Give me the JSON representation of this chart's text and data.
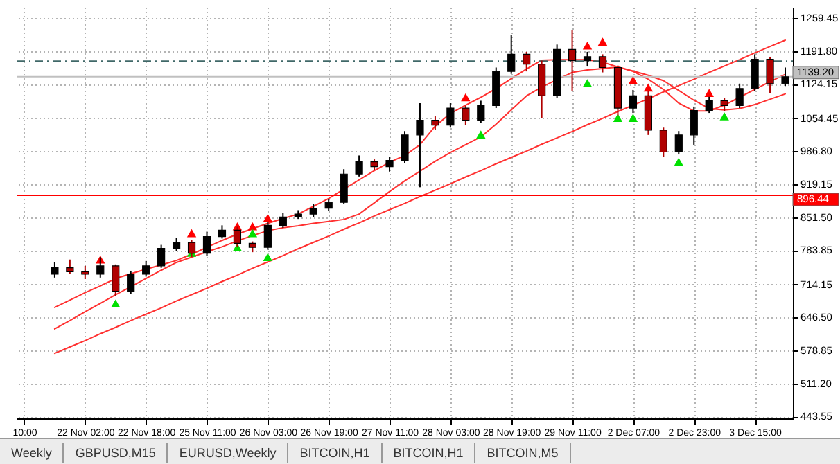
{
  "chart_data": {
    "type": "candlestick",
    "categories": [
      "10:00",
      null,
      null,
      null,
      "22 Nov 02:00",
      null,
      null,
      null,
      "22 Nov 18:00",
      null,
      null,
      null,
      "25 Nov 11:00",
      null,
      null,
      null,
      "26 Nov 03:00",
      null,
      null,
      null,
      "26 Nov 19:00",
      null,
      null,
      null,
      "27 Nov 11:00",
      null,
      null,
      null,
      "28 Nov 03:00",
      null,
      null,
      null,
      "28 Nov 19:00",
      null,
      null,
      null,
      "29 Nov 11:00",
      null,
      null,
      null,
      "2 Dec 07:00",
      null,
      null,
      null,
      "2 Dec 23:00",
      null,
      null,
      null,
      "3 Dec 15:00",
      null,
      null
    ],
    "ohlc": [
      null,
      null,
      [
        735,
        760,
        728,
        748
      ],
      [
        748,
        765,
        735,
        740
      ],
      [
        740,
        752,
        725,
        735
      ],
      [
        735,
        770,
        728,
        752
      ],
      [
        752,
        755,
        690,
        700
      ],
      [
        700,
        742,
        695,
        735
      ],
      [
        735,
        762,
        730,
        752
      ],
      [
        752,
        795,
        748,
        788
      ],
      [
        788,
        810,
        782,
        800
      ],
      [
        800,
        805,
        770,
        778
      ],
      [
        778,
        822,
        772,
        812
      ],
      [
        812,
        835,
        808,
        825
      ],
      [
        825,
        832,
        790,
        798
      ],
      [
        798,
        802,
        780,
        790
      ],
      [
        790,
        842,
        785,
        835
      ],
      [
        835,
        860,
        830,
        852
      ],
      [
        852,
        866,
        848,
        858
      ],
      [
        858,
        878,
        852,
        870
      ],
      [
        870,
        888,
        865,
        882
      ],
      [
        882,
        950,
        878,
        940
      ],
      [
        940,
        978,
        935,
        965
      ],
      [
        965,
        970,
        948,
        955
      ],
      [
        955,
        975,
        945,
        968
      ],
      [
        968,
        1028,
        962,
        1020
      ],
      [
        1020,
        1085,
        913,
        1050
      ],
      [
        1050,
        1058,
        1030,
        1040
      ],
      [
        1040,
        1085,
        1035,
        1075
      ],
      [
        1075,
        1080,
        1040,
        1050
      ],
      [
        1050,
        1090,
        1045,
        1080
      ],
      [
        1080,
        1158,
        1075,
        1150
      ],
      [
        1150,
        1225,
        1145,
        1185
      ],
      [
        1185,
        1190,
        1150,
        1165
      ],
      [
        1165,
        1172,
        1054,
        1100
      ],
      [
        1100,
        1205,
        1095,
        1195
      ],
      [
        1195,
        1235,
        1110,
        1172
      ],
      [
        1172,
        1190,
        1160,
        1180
      ],
      [
        1180,
        1185,
        1148,
        1158
      ],
      [
        1158,
        1162,
        1060,
        1075
      ],
      [
        1075,
        1112,
        1065,
        1100
      ],
      [
        1100,
        1110,
        1020,
        1030
      ],
      [
        1030,
        1035,
        975,
        985
      ],
      [
        985,
        1028,
        980,
        1020
      ],
      [
        1020,
        1078,
        1000,
        1070
      ],
      [
        1070,
        1098,
        1065,
        1090
      ],
      [
        1090,
        1095,
        1068,
        1080
      ],
      [
        1080,
        1125,
        1075,
        1115
      ],
      [
        1115,
        1185,
        1110,
        1175
      ],
      [
        1175,
        1180,
        1105,
        1125
      ],
      [
        1125,
        1158,
        1120,
        1139
      ]
    ],
    "colors": [
      null,
      null,
      "#000000",
      "#b00000",
      "#b00000",
      "#000000",
      "#b00000",
      "#000000",
      "#000000",
      "#000000",
      "#000000",
      "#b00000",
      "#000000",
      "#000000",
      "#b00000",
      "#b00000",
      "#000000",
      "#000000",
      "#000000",
      "#000000",
      "#000000",
      "#000000",
      "#000000",
      "#b00000",
      "#000000",
      "#000000",
      "#000000",
      "#b00000",
      "#000000",
      "#b00000",
      "#000000",
      "#000000",
      "#000000",
      "#b00000",
      "#b00000",
      "#000000",
      "#b00000",
      "#000000",
      "#b00000",
      "#b00000",
      "#000000",
      "#b00000",
      "#b00000",
      "#000000",
      "#000000",
      "#000000",
      "#b00000",
      "#000000",
      "#000000",
      "#b00000",
      "#000000"
    ],
    "ylim": [
      440,
      1282
    ],
    "yticks": [
      {
        "value": 443.55,
        "label": "443.55"
      },
      {
        "value": 511.2,
        "label": "511.20"
      },
      {
        "value": 578.85,
        "label": "578.85"
      },
      {
        "value": 646.5,
        "label": "646.50"
      },
      {
        "value": 714.15,
        "label": "714.15"
      },
      {
        "value": 783.85,
        "label": "783.85"
      },
      {
        "value": 851.5,
        "label": "851.50"
      },
      {
        "value": 919.15,
        "label": "919.15"
      },
      {
        "value": 986.8,
        "label": "986.80"
      },
      {
        "value": 1054.45,
        "label": "1054.45"
      },
      {
        "value": 1124.15,
        "label": "1124.15"
      },
      {
        "value": 1191.8,
        "label": "1191.80"
      },
      {
        "value": 1259.45,
        "label": "1259.45"
      }
    ],
    "grid": true,
    "series": [
      {
        "type": "line",
        "color": "#ff3030",
        "values": [
          null,
          null,
          667,
          682,
          697,
          711,
          726,
          736,
          745,
          754,
          763,
          776,
          790,
          804,
          817,
          828,
          839,
          849,
          858,
          874,
          890,
          909,
          928,
          947,
          964,
          978,
          1000,
          1038,
          1064,
          1081,
          1097,
          1115,
          1135,
          1155,
          1173,
          1174,
          1174,
          1174,
          1169,
          1159,
          1150,
          1134,
          1113,
          1085,
          1069,
          1069,
          1081,
          1097,
          1113,
          1129,
          1144
        ]
      },
      {
        "type": "line",
        "color": "#ff3030",
        "values": [
          null,
          null,
          623,
          640,
          658,
          675,
          693,
          709,
          726,
          743,
          759,
          770,
          781,
          791,
          803,
          814,
          824,
          830,
          834,
          839,
          843,
          847,
          858,
          881,
          904,
          926,
          946,
          966,
          984,
          1000,
          1016,
          1042,
          1071,
          1100,
          1118,
          1133,
          1148,
          1153,
          1156,
          1159,
          1151,
          1142,
          1131,
          1111,
          1091,
          1074,
          1071,
          1074,
          1082,
          1093,
          1104
        ]
      },
      {
        "type": "line",
        "color": "#ff3030",
        "values": [
          null,
          null,
          573,
          586,
          599,
          613,
          626,
          640,
          653,
          666,
          680,
          693,
          706,
          720,
          733,
          747,
          760,
          773,
          787,
          800,
          813,
          827,
          840,
          854,
          867,
          880,
          894,
          907,
          920,
          934,
          947,
          961,
          974,
          987,
          1001,
          1014,
          1027,
          1041,
          1054,
          1068,
          1081,
          1094,
          1108,
          1121,
          1134,
          1148,
          1161,
          1174,
          1188,
          1201,
          1214
        ]
      },
      {
        "type": "scatter",
        "color": "#ff0000",
        "marker": "triangle",
        "values": [
          null,
          null,
          null,
          null,
          null,
          765,
          null,
          null,
          null,
          null,
          null,
          819,
          null,
          null,
          833,
          833,
          850,
          null,
          null,
          null,
          null,
          null,
          null,
          null,
          null,
          null,
          null,
          null,
          null,
          1097,
          null,
          null,
          null,
          null,
          null,
          null,
          null,
          1203,
          1211,
          null,
          1132,
          1117,
          null,
          null,
          null,
          1106,
          null,
          null,
          null,
          null,
          null
        ]
      },
      {
        "type": "scatter",
        "color": "#00e000",
        "marker": "triangle",
        "values": [
          null,
          null,
          null,
          null,
          null,
          null,
          675,
          null,
          null,
          null,
          null,
          779,
          null,
          null,
          790,
          819,
          770,
          null,
          null,
          null,
          null,
          null,
          null,
          null,
          null,
          null,
          null,
          null,
          null,
          null,
          1021,
          null,
          null,
          null,
          null,
          null,
          null,
          1126,
          null,
          1055,
          1055,
          null,
          null,
          965,
          null,
          null,
          1058,
          null,
          null,
          null,
          null
        ]
      }
    ],
    "ref_lines": [
      {
        "axis": "y",
        "value": 896.44,
        "label": "896.44",
        "color": "#ff0000"
      },
      {
        "axis": "y",
        "value": 1139.2,
        "label": "1139.20",
        "color": "#c0c0c0"
      },
      {
        "axis": "y",
        "value": 1171,
        "color": "#406868",
        "line_style": "dashed"
      }
    ],
    "annotations": [
      "Weekly",
      "GBPUSD,M15",
      "EURUSD,Weekly",
      "BITCOIN,H1",
      "BITCOIN,H1",
      "BITCOIN,M5"
    ]
  }
}
